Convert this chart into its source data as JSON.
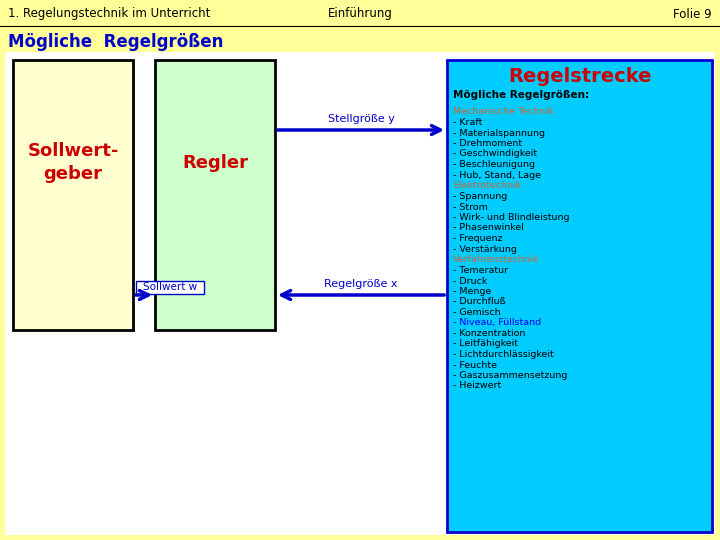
{
  "bg_color": "#FFFF99",
  "title_left": "1. Regelungstechnik im Unterricht",
  "title_center": "Einführung",
  "title_right": "Folie 9",
  "main_title": "Mögliche  Regelgrößen",
  "sollwertgeber_label": "Sollwert-\ngeber",
  "regler_label": "Regler",
  "regelstrecke_label": "Regelstrecke",
  "moegliche_label": "Mögliche Regelgrößen:",
  "sollwert_label": "Sollwert w",
  "stellgroesse_label": "Stellgröße y",
  "regelgroesse_label": "Regelgröße x",
  "mechanische_header": "Mechanische Technik:",
  "mechanische_items": [
    "- Kraft",
    "- Materialspannung",
    "- Drehmoment",
    "- Geschwindigkeit",
    "- Beschleunigung",
    "- Hub, Stand, Lage"
  ],
  "elektro_header": "Elektrotechnik",
  "elektro_items": [
    "- Spannung",
    "- Strom",
    "- Wirk- und Blindleistung",
    "- Phasenwinkel",
    "- Frequenz",
    "- Verstärkung"
  ],
  "verfahren_header": "Verfahrenstechnik",
  "verfahren_items": [
    "- Temeratur",
    "- Druck",
    "- Menge",
    "- Durchfluß",
    "- Gemisch",
    "- Niveau, Füllstand",
    "- Konzentration",
    "- Leitfähigkeit",
    "- Lichtdurchlässigkeit",
    "- Feuchte",
    "- Gaszusammensetzung",
    "- Heizwert"
  ],
  "arrow_color": "#0000CC",
  "red_color": "#CC0000",
  "blue_text_color": "#0000CC",
  "black_color": "#000000",
  "orange_header_color": "#CC6633",
  "niveau_color": "#0000FF",
  "sollwert_facecolor": "#FFFFD0",
  "regler_facecolor": "#CCFFCC",
  "regelstrecke_facecolor": "#00CCFF",
  "white": "#FFFFFF"
}
